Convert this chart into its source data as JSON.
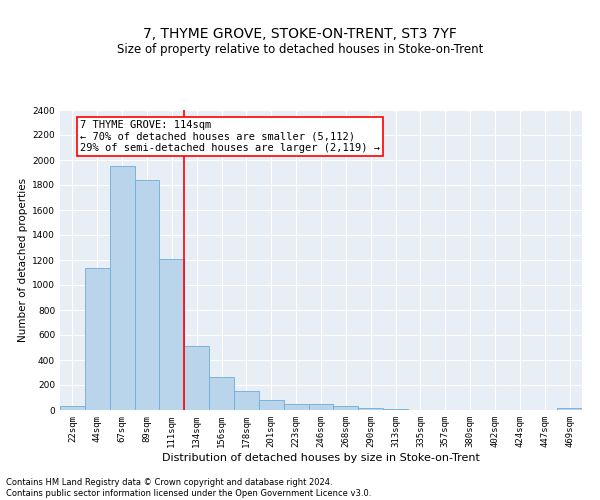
{
  "title": "7, THYME GROVE, STOKE-ON-TRENT, ST3 7YF",
  "subtitle": "Size of property relative to detached houses in Stoke-on-Trent",
  "xlabel": "Distribution of detached houses by size in Stoke-on-Trent",
  "ylabel": "Number of detached properties",
  "categories": [
    "22sqm",
    "44sqm",
    "67sqm",
    "89sqm",
    "111sqm",
    "134sqm",
    "156sqm",
    "178sqm",
    "201sqm",
    "223sqm",
    "246sqm",
    "268sqm",
    "290sqm",
    "313sqm",
    "335sqm",
    "357sqm",
    "380sqm",
    "402sqm",
    "424sqm",
    "447sqm",
    "469sqm"
  ],
  "values": [
    30,
    1140,
    1950,
    1840,
    1210,
    510,
    265,
    155,
    80,
    50,
    45,
    30,
    15,
    10,
    0,
    0,
    0,
    0,
    0,
    0,
    15
  ],
  "bar_color": "#bad4ec",
  "bar_edge_color": "#6baed6",
  "vline_index": 4,
  "vline_color": "red",
  "annotation_line1": "7 THYME GROVE: 114sqm",
  "annotation_line2": "← 70% of detached houses are smaller (5,112)",
  "annotation_line3": "29% of semi-detached houses are larger (2,119) →",
  "annotation_box_color": "white",
  "annotation_box_edge_color": "red",
  "ylim": [
    0,
    2400
  ],
  "yticks": [
    0,
    200,
    400,
    600,
    800,
    1000,
    1200,
    1400,
    1600,
    1800,
    2000,
    2200,
    2400
  ],
  "footnote": "Contains HM Land Registry data © Crown copyright and database right 2024.\nContains public sector information licensed under the Open Government Licence v3.0.",
  "title_fontsize": 10,
  "subtitle_fontsize": 8.5,
  "xlabel_fontsize": 8,
  "ylabel_fontsize": 7.5,
  "tick_fontsize": 6.5,
  "annotation_fontsize": 7.5,
  "footnote_fontsize": 6.0,
  "bg_color": "#e8eef5"
}
